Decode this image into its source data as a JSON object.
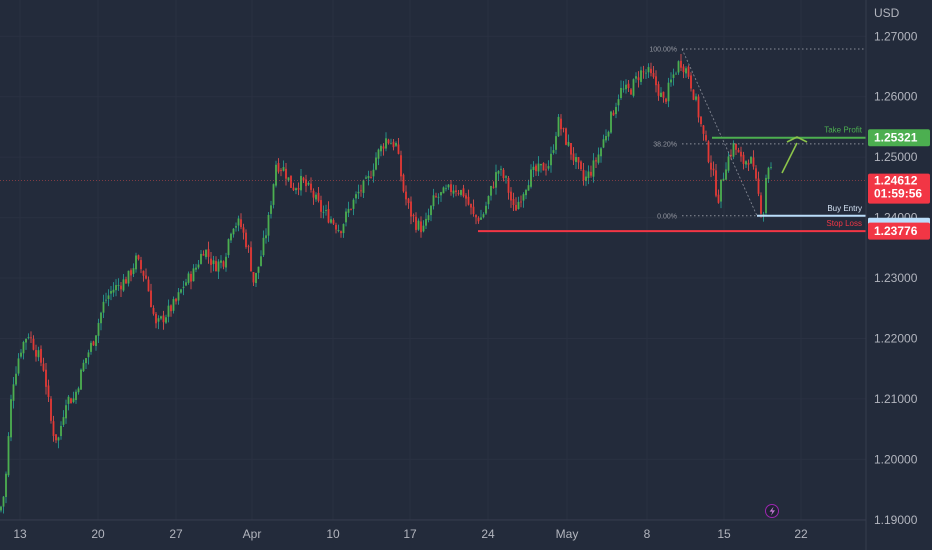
{
  "chart_data": {
    "type": "candlestick",
    "currency": "USD",
    "ylim": [
      1.185,
      1.276
    ],
    "x_ticks": [
      "13",
      "20",
      "27",
      "Apr",
      "10",
      "17",
      "24",
      "May",
      "8",
      "15",
      "22"
    ],
    "y_ticks": [
      "1.27000",
      "1.26000",
      "1.25000",
      "1.24000",
      "1.23000",
      "1.22000",
      "1.21000",
      "1.20000",
      "1.19000"
    ],
    "current_price": "1.24612",
    "countdown": "01:59:56",
    "take_profit": {
      "label": "Take Profit",
      "price": 1.25321,
      "price_text": "1.25321"
    },
    "buy_entry": {
      "label": "Buy Entry",
      "price": 1.2403
    },
    "stop_loss": {
      "label": "Stop Loss",
      "price": 1.23776,
      "price_text": "1.23776"
    },
    "fib_levels": [
      {
        "label": "100.00%",
        "price": 1.2679
      },
      {
        "label": "38.20%",
        "price": 1.2522
      },
      {
        "label": "0.00%",
        "price": 1.2403
      }
    ],
    "waypoints": [
      [
        0,
        1.1915
      ],
      [
        5,
        1.195
      ],
      [
        12,
        1.212
      ],
      [
        20,
        1.218
      ],
      [
        28,
        1.221
      ],
      [
        36,
        1.218
      ],
      [
        44,
        1.215
      ],
      [
        52,
        1.205
      ],
      [
        58,
        1.203
      ],
      [
        66,
        1.21
      ],
      [
        74,
        1.21
      ],
      [
        84,
        1.216
      ],
      [
        94,
        1.22
      ],
      [
        104,
        1.226
      ],
      [
        112,
        1.228
      ],
      [
        120,
        1.229
      ],
      [
        128,
        1.23
      ],
      [
        136,
        1.233
      ],
      [
        146,
        1.23
      ],
      [
        156,
        1.222
      ],
      [
        166,
        1.224
      ],
      [
        176,
        1.226
      ],
      [
        184,
        1.229
      ],
      [
        194,
        1.231
      ],
      [
        204,
        1.235
      ],
      [
        214,
        1.232
      ],
      [
        224,
        1.233
      ],
      [
        232,
        1.239
      ],
      [
        240,
        1.239
      ],
      [
        248,
        1.235
      ],
      [
        254,
        1.229
      ],
      [
        260,
        1.233
      ],
      [
        268,
        1.239
      ],
      [
        276,
        1.249
      ],
      [
        284,
        1.248
      ],
      [
        292,
        1.245
      ],
      [
        302,
        1.246
      ],
      [
        312,
        1.244
      ],
      [
        322,
        1.241
      ],
      [
        330,
        1.24
      ],
      [
        340,
        1.238
      ],
      [
        348,
        1.241
      ],
      [
        358,
        1.244
      ],
      [
        368,
        1.246
      ],
      [
        376,
        1.25
      ],
      [
        386,
        1.253
      ],
      [
        396,
        1.252
      ],
      [
        404,
        1.244
      ],
      [
        410,
        1.241
      ],
      [
        416,
        1.239
      ],
      [
        424,
        1.238
      ],
      [
        434,
        1.243
      ],
      [
        444,
        1.244
      ],
      [
        454,
        1.245
      ],
      [
        464,
        1.244
      ],
      [
        474,
        1.24
      ],
      [
        482,
        1.24
      ],
      [
        490,
        1.244
      ],
      [
        498,
        1.248
      ],
      [
        506,
        1.246
      ],
      [
        514,
        1.241
      ],
      [
        522,
        1.244
      ],
      [
        530,
        1.247
      ],
      [
        540,
        1.248
      ],
      [
        550,
        1.249
      ],
      [
        558,
        1.256
      ],
      [
        568,
        1.252
      ],
      [
        576,
        1.249
      ],
      [
        584,
        1.246
      ],
      [
        592,
        1.248
      ],
      [
        600,
        1.251
      ],
      [
        610,
        1.256
      ],
      [
        620,
        1.261
      ],
      [
        630,
        1.261
      ],
      [
        640,
        1.264
      ],
      [
        648,
        1.264
      ],
      [
        656,
        1.262
      ],
      [
        664,
        1.259
      ],
      [
        672,
        1.263
      ],
      [
        680,
        1.266
      ],
      [
        688,
        1.264
      ],
      [
        696,
        1.259
      ],
      [
        704,
        1.253
      ],
      [
        712,
        1.248
      ],
      [
        718,
        1.243
      ],
      [
        726,
        1.249
      ],
      [
        734,
        1.252
      ],
      [
        742,
        1.249
      ],
      [
        750,
        1.25
      ],
      [
        758,
        1.244
      ],
      [
        763,
        1.24
      ],
      [
        767,
        1.249
      ],
      [
        771,
        1.248
      ]
    ]
  }
}
